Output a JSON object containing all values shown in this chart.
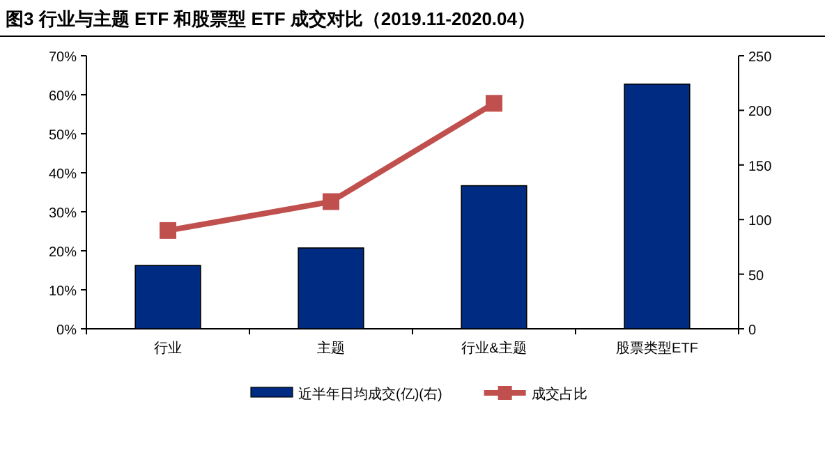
{
  "chart_data": {
    "type": "bar",
    "title": "图3  行业与主题 ETF 和股票型 ETF 成交对比（2019.11-2020.04）",
    "categories": [
      "行业",
      "主题",
      "行业&主题",
      "股票类型ETF"
    ],
    "series": [
      {
        "name": "近半年日均成交(亿)(右)",
        "axis": "y2",
        "color": "#002b82",
        "values": [
          58,
          74,
          131,
          224
        ]
      },
      {
        "name": "成交占比",
        "type": "line",
        "color": "#c0504d",
        "values": [
          25.2,
          32.6,
          57.8,
          null
        ]
      }
    ],
    "ylim": [
      0,
      70
    ],
    "yticks": [
      {
        "value": 0,
        "label": "0%"
      },
      {
        "value": 10,
        "label": "10%"
      },
      {
        "value": 20,
        "label": "20%"
      },
      {
        "value": 30,
        "label": "30%"
      },
      {
        "value": 40,
        "label": "40%"
      },
      {
        "value": 50,
        "label": "50%"
      },
      {
        "value": 60,
        "label": "60%"
      },
      {
        "value": 70,
        "label": "70%"
      }
    ],
    "y2lim": [
      0,
      250
    ],
    "y2ticks": [
      0,
      50,
      100,
      150,
      200,
      250
    ],
    "marker": "square",
    "legend": "bottom",
    "line_style": "solid"
  }
}
